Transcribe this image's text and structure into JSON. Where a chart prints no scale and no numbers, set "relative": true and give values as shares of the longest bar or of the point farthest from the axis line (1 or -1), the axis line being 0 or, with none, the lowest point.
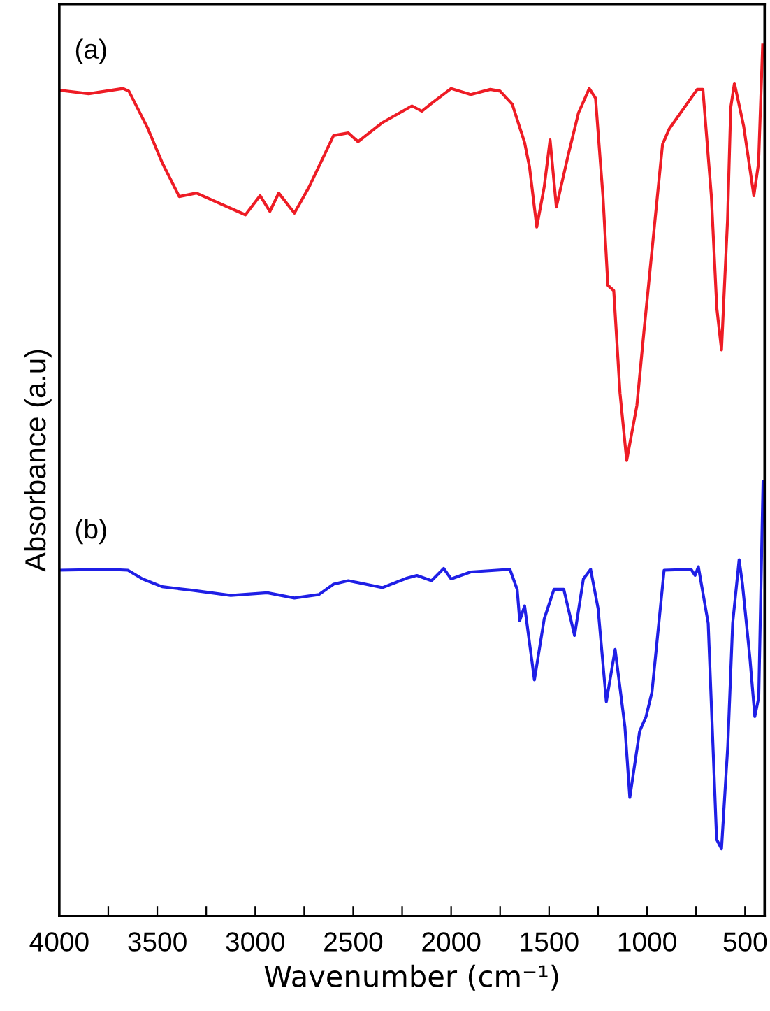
{
  "chart_data": {
    "type": "line",
    "relative": true,
    "xlabel": "Wavenumber (cm⁻¹)",
    "ylabel": "Absorbance (a.u)",
    "xlim": [
      4000,
      400
    ],
    "xticks": [
      4000,
      {
        "value": 3750,
        "label": null
      },
      3500,
      {
        "value": 3250,
        "label": null
      },
      3000,
      {
        "value": 2750,
        "label": null
      },
      2500,
      {
        "value": 2250,
        "label": null
      },
      2000,
      {
        "value": 1750,
        "label": null
      },
      1500,
      {
        "value": 1250,
        "label": null
      },
      1000,
      {
        "value": 750,
        "label": null
      },
      500
    ],
    "tick_labels": "x",
    "grid": false,
    "legend": false,
    "marker": "none",
    "line_style": "solid",
    "series": [
      {
        "name": "(a)",
        "color": "#ee1c25",
        "x": [
          4000,
          3850,
          3675,
          3645,
          3550,
          3475,
          3388,
          3300,
          3200,
          3050,
          2975,
          2925,
          2880,
          2800,
          2725,
          2600,
          2525,
          2475,
          2350,
          2200,
          2150,
          2100,
          2000,
          1900,
          1800,
          1750,
          1688,
          1625,
          1600,
          1563,
          1525,
          1495,
          1463,
          1400,
          1350,
          1295,
          1263,
          1225,
          1200,
          1170,
          1138,
          1104,
          1052,
          1016,
          921,
          886,
          744,
          715,
          672,
          644,
          620,
          589,
          573,
          554,
          507,
          455,
          431,
          410
        ],
        "values": [
          0.948,
          0.944,
          0.95,
          0.947,
          0.905,
          0.865,
          0.826,
          0.83,
          0.82,
          0.805,
          0.827,
          0.809,
          0.83,
          0.807,
          0.837,
          0.896,
          0.899,
          0.889,
          0.911,
          0.93,
          0.924,
          0.933,
          0.95,
          0.943,
          0.949,
          0.947,
          0.932,
          0.888,
          0.86,
          0.791,
          0.837,
          0.891,
          0.814,
          0.876,
          0.922,
          0.95,
          0.939,
          0.826,
          0.724,
          0.718,
          0.6,
          0.523,
          0.586,
          0.671,
          0.886,
          0.904,
          0.949,
          0.949,
          0.827,
          0.698,
          0.65,
          0.8,
          0.928,
          0.956,
          0.907,
          0.827,
          0.864,
          1.0
        ]
      },
      {
        "name": "(b)",
        "color": "#1f1fe6",
        "x": [
          4000,
          3750,
          3650,
          3575,
          3475,
          3325,
          3125,
          2938,
          2800,
          2675,
          2600,
          2525,
          2350,
          2225,
          2175,
          2100,
          2038,
          2000,
          1900,
          1700,
          1663,
          1650,
          1625,
          1575,
          1525,
          1475,
          1425,
          1370,
          1325,
          1288,
          1250,
          1208,
          1163,
          1113,
          1088,
          1038,
          1005,
          975,
          913,
          775,
          755,
          738,
          688,
          645,
          620,
          588,
          563,
          530,
          513,
          475,
          450,
          430,
          408
        ],
        "values": [
          0.397,
          0.398,
          0.397,
          0.387,
          0.378,
          0.374,
          0.368,
          0.371,
          0.365,
          0.369,
          0.381,
          0.385,
          0.377,
          0.388,
          0.391,
          0.385,
          0.399,
          0.387,
          0.395,
          0.398,
          0.375,
          0.339,
          0.356,
          0.271,
          0.341,
          0.375,
          0.375,
          0.322,
          0.387,
          0.398,
          0.353,
          0.246,
          0.306,
          0.217,
          0.136,
          0.212,
          0.229,
          0.257,
          0.397,
          0.398,
          0.391,
          0.401,
          0.336,
          0.088,
          0.077,
          0.195,
          0.336,
          0.409,
          0.381,
          0.296,
          0.229,
          0.251,
          0.499
        ]
      }
    ]
  }
}
